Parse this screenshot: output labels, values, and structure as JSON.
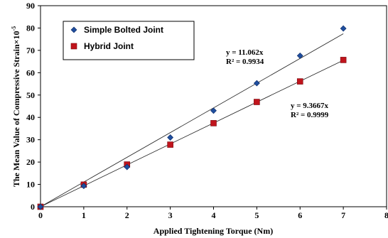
{
  "chart_data": {
    "type": "scatter",
    "xlabel": "Applied Tightening Torque (Nm)",
    "ylabel": "The Mean Value of Compressive Strain×10",
    "ylabel_sup": "-5",
    "xlim": [
      0,
      8
    ],
    "ylim": [
      0,
      90
    ],
    "x_ticks": [
      "0",
      "1",
      "2",
      "3",
      "4",
      "5",
      "6",
      "7",
      "8"
    ],
    "y_ticks": [
      "0",
      "10",
      "20",
      "30",
      "40",
      "50",
      "60",
      "70",
      "80",
      "90"
    ],
    "grid": false,
    "legend_position": "top-left",
    "series": [
      {
        "name": "Simple Bolted Joint",
        "marker": "diamond",
        "color": "#1f4e9e",
        "x": [
          0,
          1,
          2,
          3,
          4,
          5,
          6,
          7
        ],
        "y": [
          0,
          9.3,
          17.8,
          31.0,
          43.0,
          55.3,
          67.6,
          79.8
        ],
        "trendline": {
          "slope": 11.062,
          "x_end": 7
        },
        "equation": "y = 11.062x",
        "r2": "R² = 0.9934"
      },
      {
        "name": "Hybrid Joint",
        "marker": "square",
        "color": "#c0141c",
        "x": [
          0,
          1,
          2,
          3,
          4,
          5,
          6,
          7
        ],
        "y": [
          0,
          9.9,
          18.9,
          27.8,
          37.4,
          46.9,
          56.1,
          65.7
        ],
        "trendline": {
          "slope": 9.3667,
          "x_end": 7
        },
        "equation": "y = 9.3667x",
        "r2": "R² = 0.9999"
      }
    ]
  }
}
